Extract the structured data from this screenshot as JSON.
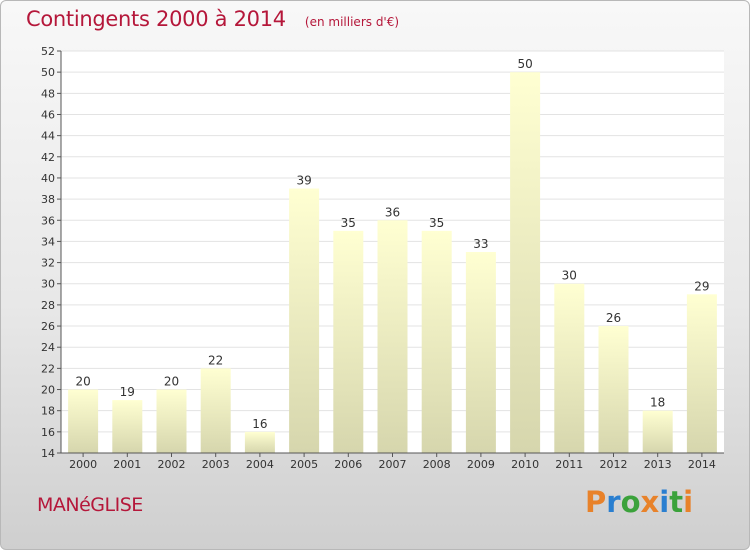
{
  "header": {
    "title": "Contingents 2000 à 2014",
    "unit": "(en milliers d'€)"
  },
  "footer": {
    "commune": "MANéGLISE",
    "logo": "Proxiti",
    "logo_letter_colors": [
      "#e8822a",
      "#2a7fd0",
      "#3ba23b",
      "#e8822a",
      "#2a7fd0",
      "#3ba23b",
      "#e8822a"
    ]
  },
  "colors": {
    "accent": "#b5173a",
    "bar_top": "#ffffd2",
    "bar_bottom": "#d6d6ad"
  },
  "chart_data": {
    "type": "bar",
    "title": "Contingents 2000 à 2014",
    "xlabel": "",
    "ylabel": "",
    "categories": [
      "2000",
      "2001",
      "2002",
      "2003",
      "2004",
      "2005",
      "2006",
      "2007",
      "2008",
      "2009",
      "2010",
      "2011",
      "2012",
      "2013",
      "2014"
    ],
    "values": [
      20,
      19,
      20,
      22,
      16,
      39,
      35,
      36,
      35,
      33,
      50,
      30,
      26,
      18,
      29
    ],
    "ylim": [
      14,
      52
    ],
    "yticks": [
      14,
      16,
      18,
      20,
      22,
      24,
      26,
      28,
      30,
      32,
      34,
      36,
      38,
      40,
      42,
      44,
      46,
      48,
      50,
      52
    ],
    "grid": true,
    "data_labels": true
  }
}
